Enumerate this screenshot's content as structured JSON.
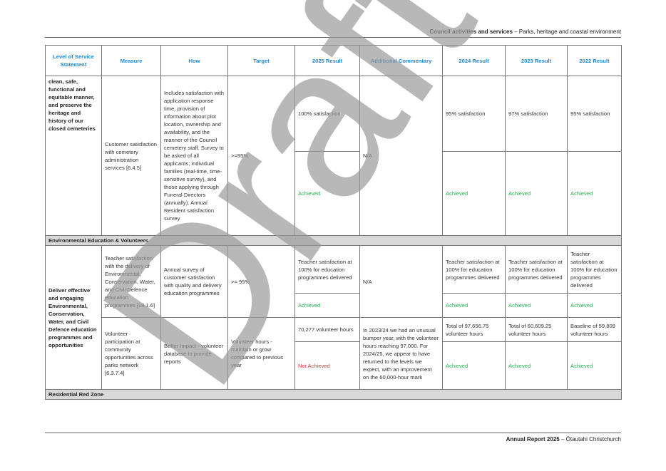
{
  "header": {
    "section": "Council activities and services",
    "subsection": " – Parks, heritage and coastal environment"
  },
  "footer": {
    "report": "Annual Report 2025",
    "place": " – Ōtautahi Christchurch"
  },
  "watermark": "Draft",
  "colors": {
    "header_text": "#1f88d6",
    "achieved": "#22b14c",
    "not_achieved": "#e8323c",
    "section_bg": "#d9d9d9"
  },
  "table": {
    "columns": [
      "Level of Service Statement",
      "Measure",
      "How",
      "Target",
      "2025 Result",
      "Additional Commentary",
      "2024 Result",
      "2023 Result",
      "2022 Result"
    ],
    "row1": {
      "statement": "clean, safe, functional and equitable manner, and preserve the heritage and history of our closed cemeteries",
      "measure": "Customer satisfaction with cemetery administration services [6.4.5]",
      "how": "Includes satisfaction with application response time, provision of information about plot location, ownership and availability, and the manner of the Council cemetery staff. Survey to be asked of all applicants; individual families (real-time, time-sensitive survey), and those applying through Funeral Directors (annually). Annual Resident satisfaction survey",
      "target": ">=95%",
      "r2025": "100% satisfaction",
      "s2025": "Achieved",
      "commentary": "N/A",
      "r2024": "95% satisfaction",
      "s2024": "Achieved",
      "r2023": "97% satisfaction",
      "s2023": "Achieved",
      "r2022": "95% satisfaction",
      "s2022": "Achieved"
    },
    "section1": "Environmental Education & Volunteers",
    "statement2": "Deliver effective and engaging Environmental, Conservation, Water, and Civil Defence education programmes and opportunities",
    "row2": {
      "measure": "Teacher satisfaction with the delivery of Environmental, Conservation, Water, and Civil Defence education programmes [19.1.6]",
      "how": "Annual survey of customer satisfaction with quality and delivery education programmes",
      "target": ">= 95%",
      "r2025": "Teacher satisfaction at 100% for education programmes delivered",
      "s2025": "Achieved",
      "commentary": "N/A",
      "r2024": "Teacher satisfaction at 100% for education programmes delivered",
      "s2024": "Achieved",
      "r2023": "Teacher satisfaction at 100% for education programmes delivered",
      "s2023": "Achieved",
      "r2022": "Teacher satisfaction at 100% for education programmes delivered",
      "s2022": "Achieved"
    },
    "row3": {
      "measure": "Volunteer participation at community opportunities across parks network [6.3.7.4]",
      "how": "Better Impact - volunteer database to provide reports",
      "target": "Volunteer hours - maintain or grow compared to previous year",
      "r2025": "70,277 volunteer hours",
      "s2025": "Not Achieved",
      "commentary": "In 2023/24 we had an unusual bumper year, with the volunteer hours reaching 97,000. For 2024/25, we appear to have returned to the levels we expect, with an improvement on the 60,000-hour mark",
      "r2024": "Total of 97,656.75 volunteer hours",
      "s2024": "Achieved",
      "r2023": "Total of 60,609.25 volunteer hours",
      "s2023": "Achieved",
      "r2022": "Baseline of 59,809 volunteer hours",
      "s2022": "Achieved"
    },
    "section2": "Residential Red Zone"
  }
}
